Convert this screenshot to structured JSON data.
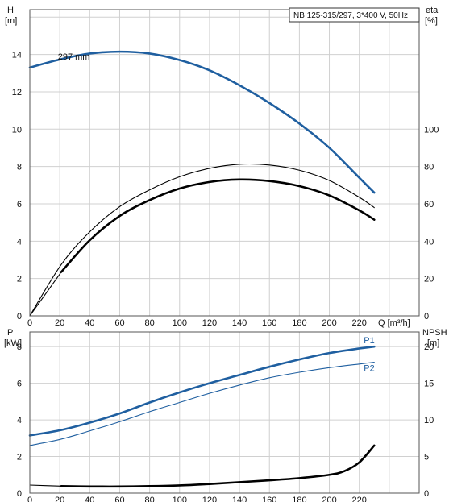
{
  "chart_data": [
    {
      "type": "line",
      "id": "upper",
      "title": "NB 125-315/297, 3*400 V, 50Hz",
      "x_axis": {
        "label": "Q [m³/h]",
        "ticks": [
          0,
          20,
          40,
          60,
          80,
          100,
          120,
          140,
          160,
          180,
          200,
          220
        ],
        "range": [
          0,
          260
        ]
      },
      "y_left": {
        "label_top": "H",
        "label_unit": "[m]",
        "ticks": [
          0,
          2,
          4,
          6,
          8,
          10,
          12,
          14
        ],
        "range": [
          0,
          16.4
        ]
      },
      "y_right": {
        "label_top": "eta",
        "label_unit": "[%]",
        "ticks": [
          0,
          20,
          40,
          60,
          80,
          100
        ],
        "range": [
          0,
          164
        ]
      },
      "grid": true,
      "series": [
        {
          "name": "297 mm",
          "axis": "left",
          "color": "#1f5fa0",
          "x": [
            0,
            21,
            40,
            60,
            80,
            100,
            120,
            140,
            160,
            180,
            200,
            220,
            230
          ],
          "y": [
            13.3,
            13.75,
            14.05,
            14.15,
            14.05,
            13.7,
            13.15,
            12.35,
            11.4,
            10.3,
            9.0,
            7.4,
            6.6
          ]
        },
        {
          "axis": "right",
          "color": "#000000",
          "line_style": "thin",
          "x": [
            0,
            21,
            40,
            60,
            80,
            100,
            120,
            140,
            160,
            180,
            200,
            220,
            230
          ],
          "y": [
            0,
            27.5,
            45,
            58.5,
            67.5,
            74.5,
            79,
            81.2,
            80.8,
            78,
            72.5,
            63.5,
            58
          ]
        },
        {
          "axis": "right",
          "color": "#000000",
          "line_style": "thick",
          "x": [
            21,
            40,
            60,
            80,
            100,
            120,
            140,
            160,
            180,
            200,
            220,
            230
          ],
          "y": [
            23.5,
            40.5,
            53.5,
            62,
            68.2,
            71.7,
            73,
            72.2,
            69.5,
            64.5,
            56.5,
            51.5
          ]
        },
        {
          "axis": "right",
          "color": "#000000",
          "line_style": "thin",
          "x": [
            0,
            21
          ],
          "y": [
            0,
            23.5
          ]
        }
      ],
      "annotations": [
        {
          "text": "297 mm",
          "x": 16,
          "y": 13.9
        }
      ]
    },
    {
      "type": "line",
      "id": "lower",
      "x_axis": {
        "ticks": [
          0,
          20,
          40,
          60,
          80,
          100,
          120,
          140,
          160,
          180,
          200,
          220
        ],
        "range": [
          0,
          260
        ]
      },
      "y_left": {
        "label_top": "P",
        "label_unit": "[kW]",
        "ticks": [
          0,
          2,
          4,
          6,
          8
        ],
        "range": [
          0,
          8.8
        ]
      },
      "y_right": {
        "label_top": "NPSH",
        "label_unit": "[m]",
        "ticks": [
          0,
          5,
          10,
          15,
          20
        ],
        "range": [
          0,
          22
        ]
      },
      "grid": true,
      "series": [
        {
          "name": "P1",
          "axis": "left",
          "color": "#1f5fa0",
          "line_style": "thick",
          "x": [
            0,
            21,
            40,
            60,
            80,
            100,
            120,
            140,
            160,
            180,
            200,
            220,
            230
          ],
          "y": [
            3.15,
            3.45,
            3.85,
            4.35,
            4.95,
            5.5,
            6.0,
            6.45,
            6.9,
            7.3,
            7.65,
            7.9,
            8.0
          ]
        },
        {
          "name": "P2",
          "axis": "left",
          "color": "#1f5fa0",
          "line_style": "thin",
          "x": [
            0,
            21,
            40,
            60,
            80,
            100,
            120,
            140,
            160,
            180,
            200,
            220,
            230
          ],
          "y": [
            2.6,
            2.95,
            3.4,
            3.9,
            4.45,
            4.95,
            5.45,
            5.9,
            6.3,
            6.6,
            6.85,
            7.05,
            7.15
          ]
        },
        {
          "axis": "right",
          "color": "#000000",
          "line_style": "thick",
          "x": [
            21,
            40,
            60,
            80,
            100,
            120,
            140,
            160,
            180,
            200,
            210,
            220,
            230
          ],
          "y": [
            0.95,
            0.9,
            0.9,
            0.95,
            1.05,
            1.25,
            1.5,
            1.75,
            2.05,
            2.5,
            3.0,
            4.2,
            6.5
          ]
        },
        {
          "axis": "right",
          "color": "#000000",
          "line_style": "thin",
          "x": [
            0,
            21
          ],
          "y": [
            1.1,
            0.95
          ]
        }
      ],
      "labels": [
        {
          "text": "P1",
          "series": "P1"
        },
        {
          "text": "P2",
          "series": "P2"
        }
      ]
    }
  ]
}
